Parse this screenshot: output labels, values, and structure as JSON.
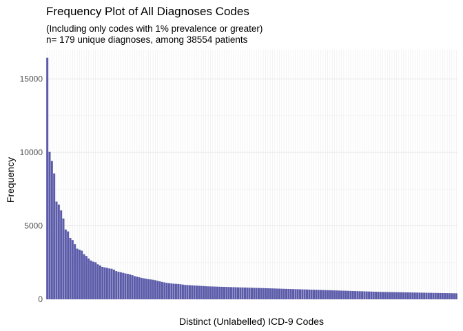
{
  "chart_data": {
    "type": "bar",
    "title": "Frequency Plot of All Diagnoses Codes",
    "subtitle_line1": "(Including only codes with 1% prevalence or greater)",
    "subtitle_line2": "n= 179  unique diagnoses, among 38554 patients",
    "xlabel": "Distinct (Unlabelled) ICD-9 Codes",
    "ylabel": "Frequency",
    "ylim": [
      0,
      17000
    ],
    "yticks": [
      0,
      5000,
      10000,
      15000
    ],
    "ytick_labels": [
      "0",
      "5000",
      "10000",
      "15000"
    ],
    "grid": true,
    "bar_color": "#5b5baa",
    "values": [
      16450,
      10050,
      9420,
      8570,
      6650,
      6450,
      6050,
      5500,
      4750,
      4620,
      4180,
      4030,
      3750,
      3450,
      3380,
      3310,
      3070,
      2950,
      2780,
      2640,
      2560,
      2520,
      2380,
      2300,
      2210,
      2170,
      2140,
      2100,
      2080,
      2020,
      1920,
      1870,
      1840,
      1800,
      1760,
      1730,
      1690,
      1640,
      1580,
      1540,
      1500,
      1460,
      1430,
      1400,
      1370,
      1350,
      1330,
      1300,
      1260,
      1220,
      1180,
      1150,
      1120,
      1100,
      1080,
      1060,
      1050,
      1040,
      1020,
      1000,
      980,
      970,
      960,
      950,
      940,
      930,
      920,
      910,
      900,
      890,
      880,
      875,
      870,
      865,
      860,
      855,
      850,
      845,
      840,
      835,
      830,
      825,
      820,
      815,
      810,
      805,
      800,
      795,
      790,
      785,
      780,
      775,
      770,
      765,
      760,
      755,
      750,
      745,
      740,
      735,
      730,
      725,
      720,
      715,
      710,
      705,
      700,
      695,
      690,
      685,
      680,
      675,
      670,
      665,
      660,
      655,
      650,
      645,
      640,
      635,
      630,
      625,
      620,
      615,
      610,
      605,
      600,
      595,
      590,
      585,
      580,
      575,
      570,
      565,
      560,
      555,
      550,
      545,
      540,
      535,
      530,
      525,
      520,
      515,
      510,
      505,
      500,
      498,
      495,
      492,
      490,
      487,
      484,
      481,
      478,
      475,
      472,
      469,
      466,
      463,
      460,
      457,
      454,
      451,
      448,
      445,
      442,
      439,
      436,
      433,
      430,
      427,
      424,
      421,
      418,
      415,
      412,
      409,
      406
    ]
  }
}
